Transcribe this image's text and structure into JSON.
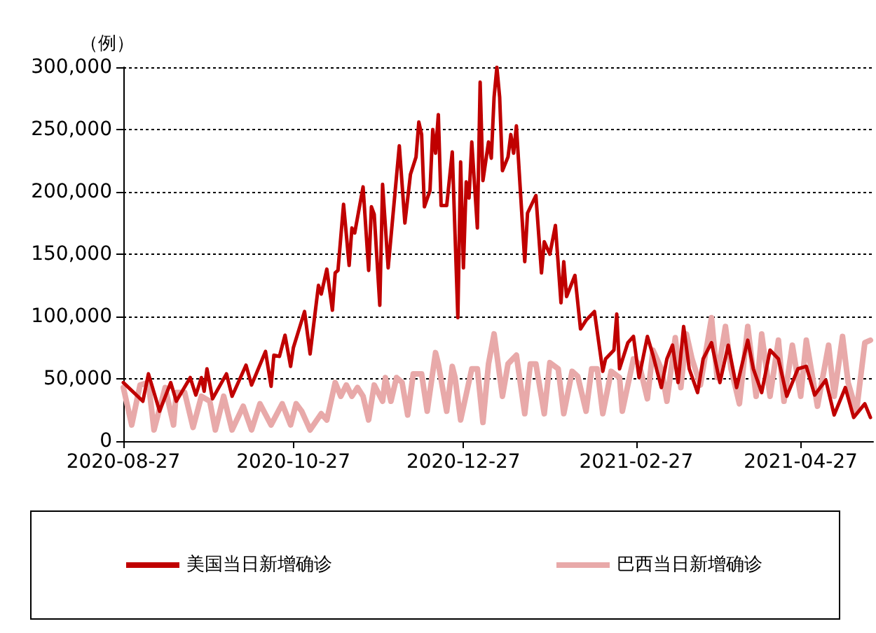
{
  "chart_data": {
    "type": "line",
    "ylabel": "（例）",
    "xlim": [
      "2020-08-27",
      "2021-05-23"
    ],
    "xticks": [
      "2020-08-27",
      "2020-10-27",
      "2020-12-27",
      "2021-02-27",
      "2021-04-27"
    ],
    "ylim": [
      0,
      300000
    ],
    "yticks": [
      0,
      {
        "value": 50000,
        "label": "50,000"
      },
      {
        "value": 100000,
        "label": "100,000"
      },
      {
        "value": 150000,
        "label": "150,000"
      },
      {
        "value": 200000,
        "label": "200,000"
      },
      {
        "value": 250000,
        "label": "250,000"
      },
      {
        "value": 300000,
        "label": "300,000"
      }
    ],
    "grid": "y",
    "legend": "bottom",
    "marker": "none",
    "line_style": "solid",
    "series": [
      {
        "name": "美国当日新增确诊",
        "color": "#c00000",
        "x": [
          "2020-08-27",
          "2020-09-03",
          "2020-09-05",
          "2020-09-09",
          "2020-09-13",
          "2020-09-15",
          "2020-09-20",
          "2020-09-22",
          "2020-09-24",
          "2020-09-25",
          "2020-09-26",
          "2020-09-28",
          "2020-10-03",
          "2020-10-05",
          "2020-10-10",
          "2020-10-12",
          "2020-10-17",
          "2020-10-19",
          "2020-10-20",
          "2020-10-22",
          "2020-10-24",
          "2020-10-26",
          "2020-10-27",
          "2020-10-31",
          "2020-11-02",
          "2020-11-05",
          "2020-11-06",
          "2020-11-08",
          "2020-11-10",
          "2020-11-11",
          "2020-11-12",
          "2020-11-14",
          "2020-11-16",
          "2020-11-17",
          "2020-11-18",
          "2020-11-21",
          "2020-11-23",
          "2020-11-24",
          "2020-11-25",
          "2020-11-27",
          "2020-11-28",
          "2020-11-30",
          "2020-12-04",
          "2020-12-06",
          "2020-12-08",
          "2020-12-10",
          "2020-12-11",
          "2020-12-12",
          "2020-12-13",
          "2020-12-15",
          "2020-12-16",
          "2020-12-17",
          "2020-12-18",
          "2020-12-19",
          "2020-12-21",
          "2020-12-23",
          "2020-12-25",
          "2020-12-26",
          "2020-12-27",
          "2020-12-28",
          "2020-12-29",
          "2020-12-30",
          "2021-01-01",
          "2021-01-02",
          "2021-01-03",
          "2021-01-05",
          "2021-01-06",
          "2021-01-07",
          "2021-01-08",
          "2021-01-09",
          "2021-01-10",
          "2021-01-12",
          "2021-01-13",
          "2021-01-14",
          "2021-01-15",
          "2021-01-18",
          "2021-01-19",
          "2021-01-22",
          "2021-01-24",
          "2021-01-25",
          "2021-01-27",
          "2021-01-29",
          "2021-01-31",
          "2021-02-01",
          "2021-02-02",
          "2021-02-05",
          "2021-02-07",
          "2021-02-09",
          "2021-02-12",
          "2021-02-15",
          "2021-02-16",
          "2021-02-19",
          "2021-02-20",
          "2021-02-21",
          "2021-02-24",
          "2021-02-26",
          "2021-02-28",
          "2021-03-03",
          "2021-03-05",
          "2021-03-08",
          "2021-03-10",
          "2021-03-12",
          "2021-03-14",
          "2021-03-16",
          "2021-03-18",
          "2021-03-21",
          "2021-03-23",
          "2021-03-26",
          "2021-03-29",
          "2021-04-01",
          "2021-04-04",
          "2021-04-08",
          "2021-04-10",
          "2021-04-13",
          "2021-04-16",
          "2021-04-19",
          "2021-04-22",
          "2021-04-26",
          "2021-04-29",
          "2021-05-02",
          "2021-05-06",
          "2021-05-09",
          "2021-05-13",
          "2021-05-16",
          "2021-05-20",
          "2021-05-22"
        ],
        "values": [
          47000,
          32000,
          54000,
          24000,
          47000,
          32000,
          51000,
          37000,
          51000,
          40000,
          58000,
          34000,
          54000,
          36000,
          61000,
          45000,
          72000,
          44000,
          69000,
          68000,
          85000,
          60000,
          75000,
          104000,
          70000,
          125000,
          118000,
          138000,
          105000,
          135000,
          137000,
          190000,
          141000,
          171000,
          167000,
          204000,
          137000,
          188000,
          182000,
          109000,
          206000,
          139000,
          237000,
          175000,
          214000,
          228000,
          256000,
          246000,
          188000,
          201000,
          250000,
          231000,
          262000,
          189000,
          189000,
          232000,
          99000,
          224000,
          139000,
          208000,
          195000,
          240000,
          171000,
          288000,
          209000,
          240000,
          227000,
          276000,
          300000,
          276000,
          217000,
          228000,
          246000,
          231000,
          253000,
          144000,
          183000,
          197000,
          135000,
          160000,
          150000,
          173000,
          111000,
          144000,
          116000,
          133000,
          90000,
          97000,
          104000,
          56000,
          66000,
          73000,
          102000,
          58000,
          79000,
          84000,
          51000,
          84000,
          69000,
          43000,
          66000,
          77000,
          47000,
          92000,
          58000,
          39000,
          66000,
          79000,
          47000,
          77000,
          43000,
          81000,
          58000,
          39000,
          73000,
          66000,
          36000,
          58000,
          60000,
          37000,
          49000,
          21000,
          43000,
          19000,
          30000,
          19000
        ]
      },
      {
        "name": "巴西当日新增确诊",
        "color": "#e8a9a9",
        "x": [
          "2020-08-27",
          "2020-08-30",
          "2020-09-02",
          "2020-09-05",
          "2020-09-07",
          "2020-09-11",
          "2020-09-14",
          "2020-09-15",
          "2020-09-18",
          "2020-09-21",
          "2020-09-24",
          "2020-09-27",
          "2020-09-29",
          "2020-10-02",
          "2020-10-05",
          "2020-10-09",
          "2020-10-12",
          "2020-10-15",
          "2020-10-19",
          "2020-10-23",
          "2020-10-26",
          "2020-10-28",
          "2020-10-30",
          "2020-11-02",
          "2020-11-06",
          "2020-11-08",
          "2020-11-11",
          "2020-11-13",
          "2020-11-15",
          "2020-11-17",
          "2020-11-19",
          "2020-11-21",
          "2020-11-23",
          "2020-11-25",
          "2020-11-28",
          "2020-11-29",
          "2020-12-01",
          "2020-12-03",
          "2020-12-05",
          "2020-12-07",
          "2020-12-09",
          "2020-12-12",
          "2020-12-14",
          "2020-12-17",
          "2020-12-18",
          "2020-12-21",
          "2020-12-23",
          "2020-12-24",
          "2020-12-26",
          "2020-12-30",
          "2021-01-01",
          "2021-01-03",
          "2021-01-05",
          "2021-01-07",
          "2021-01-10",
          "2021-01-12",
          "2021-01-15",
          "2021-01-18",
          "2021-01-20",
          "2021-01-22",
          "2021-01-25",
          "2021-01-27",
          "2021-01-30",
          "2021-02-01",
          "2021-02-04",
          "2021-02-06",
          "2021-02-09",
          "2021-02-11",
          "2021-02-13",
          "2021-02-15",
          "2021-02-18",
          "2021-02-21",
          "2021-02-22",
          "2021-02-26",
          "2021-02-28",
          "2021-03-03",
          "2021-03-05",
          "2021-03-08",
          "2021-03-10",
          "2021-03-13",
          "2021-03-15",
          "2021-03-17",
          "2021-03-19",
          "2021-03-22",
          "2021-03-26",
          "2021-03-28",
          "2021-03-31",
          "2021-04-02",
          "2021-04-05",
          "2021-04-08",
          "2021-04-11",
          "2021-04-13",
          "2021-04-16",
          "2021-04-19",
          "2021-04-21",
          "2021-04-24",
          "2021-04-27",
          "2021-04-29",
          "2021-05-03",
          "2021-05-07",
          "2021-05-09",
          "2021-05-12",
          "2021-05-14",
          "2021-05-17",
          "2021-05-20",
          "2021-05-22"
        ],
        "values": [
          43000,
          13000,
          45000,
          47000,
          9000,
          43000,
          13000,
          39000,
          39000,
          11000,
          36000,
          32000,
          9000,
          36000,
          9000,
          28000,
          9000,
          30000,
          13000,
          30000,
          13000,
          30000,
          24000,
          9000,
          22000,
          17000,
          47000,
          36000,
          45000,
          36000,
          43000,
          36000,
          17000,
          45000,
          32000,
          51000,
          32000,
          51000,
          47000,
          21000,
          54000,
          54000,
          24000,
          71000,
          62000,
          24000,
          60000,
          51000,
          17000,
          58000,
          58000,
          15000,
          62000,
          86000,
          36000,
          62000,
          69000,
          22000,
          62000,
          62000,
          22000,
          63000,
          58000,
          22000,
          56000,
          52000,
          24000,
          58000,
          58000,
          22000,
          56000,
          51000,
          24000,
          66000,
          62000,
          34000,
          73000,
          58000,
          32000,
          83000,
          43000,
          86000,
          66000,
          45000,
          99000,
          51000,
          92000,
          58000,
          30000,
          92000,
          36000,
          86000,
          36000,
          81000,
          32000,
          77000,
          36000,
          81000,
          28000,
          77000,
          36000,
          84000,
          47000,
          24000,
          79000,
          81000
        ]
      }
    ]
  }
}
